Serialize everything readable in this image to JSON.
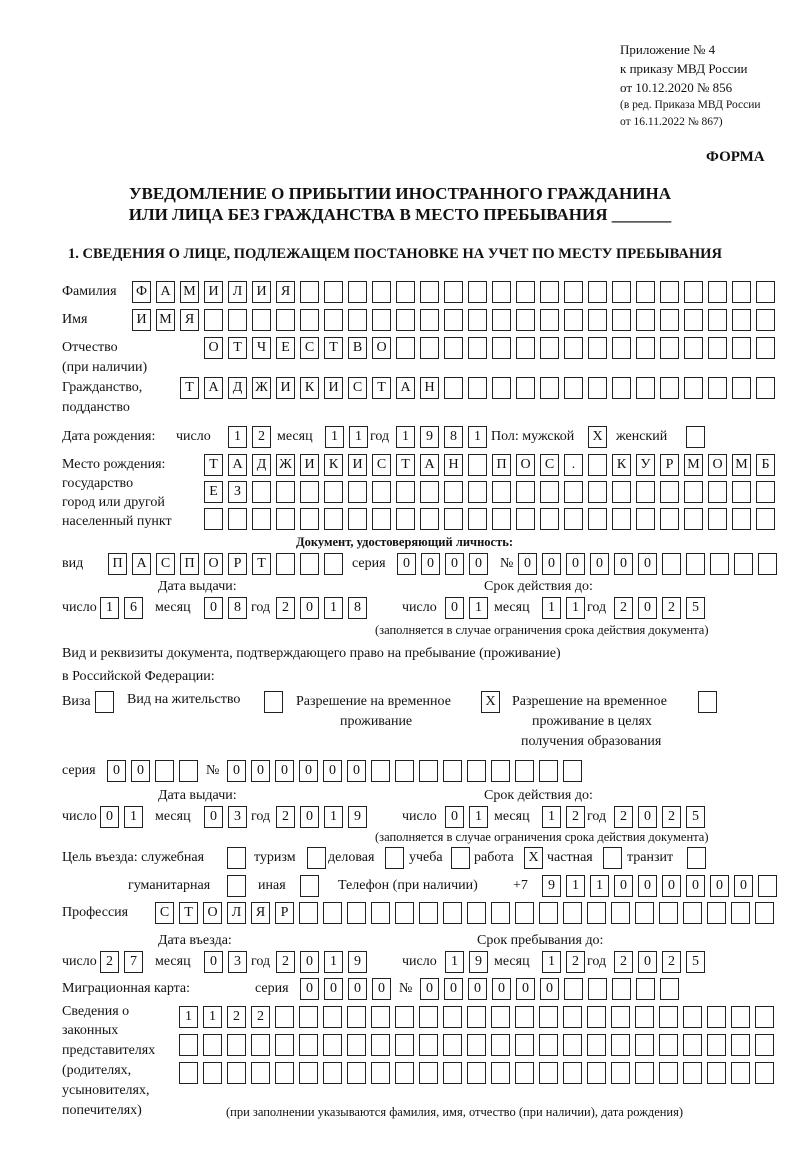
{
  "header": {
    "line1": "Приложение № 4",
    "line2": "к приказу МВД России",
    "line3": "от 10.12.2020 № 856",
    "line4": "(в ред. Приказа МВД России",
    "line5": "от 16.11.2022 № 867)",
    "form_label": "ФОРМА"
  },
  "title": {
    "line1": "УВЕДОМЛЕНИЕ О ПРИБЫТИИ ИНОСТРАННОГО ГРАЖДАНИНА",
    "line2": "ИЛИ ЛИЦА БЕЗ ГРАЖДАНСТВА В МЕСТО ПРЕБЫВАНИЯ _______"
  },
  "section1": {
    "heading": "1. СВЕДЕНИЯ О ЛИЦЕ, ПОДЛЕЖАЩЕМ ПОСТАНОВКЕ НА УЧЕТ ПО МЕСТУ ПРЕБЫВАНИЯ",
    "labels": {
      "surname": "Фамилия",
      "name": "Имя",
      "patronymic1": "Отчество",
      "patronymic2": "(при наличии)",
      "citizenship1": "Гражданство,",
      "citizenship2": "подданство",
      "dob": "Дата рождения:",
      "day": "число",
      "month": "месяц",
      "year": "год",
      "sex": "Пол: мужской",
      "female": "женский",
      "pob1": "Место рождения:",
      "pob2": "государство",
      "pob3": "город или другой",
      "pob4": "населенный пункт",
      "id_doc": "Документ, удостоверяющий личность:",
      "kind": "вид",
      "series": "серия",
      "number": "№",
      "issue_date": "Дата выдачи:",
      "valid_until": "Срок действия до:",
      "validity_note": "(заполняется в случае ограничения срока действия документа)",
      "right_doc1": "Вид и реквизиты документа, подтверждающего право на пребывание (проживание)",
      "right_doc2": "в Российской Федерации:",
      "visa": "Виза",
      "residence_permit": "Вид на жительство",
      "trp1": "Разрешение на временное",
      "trp2": "проживание",
      "trp_edu1": "Разрешение на временное",
      "trp_edu2": "проживание в целях",
      "trp_edu3": "получения образования",
      "purpose": "Цель въезда: служебная",
      "tourism": "туризм",
      "business": "деловая",
      "study": "учеба",
      "work": "работа",
      "private": "частная",
      "transit": "транзит",
      "humanitarian": "гуманитарная",
      "other": "иная",
      "phone": "Телефон (при наличии)",
      "phone_prefix": "+7",
      "profession": "Профессия",
      "entry_date": "Дата въезда:",
      "stay_until": "Срок пребывания до:",
      "migration_card": "Миграционная карта:",
      "reps1": "Сведения о",
      "reps2": "законных",
      "reps3": "представителях",
      "reps4": "(родителях,",
      "reps5": "усыновителях,",
      "reps6": "попечителях)",
      "reps_note": "(при заполнении указываются фамилия, имя, отчество (при наличии), дата рождения)"
    },
    "values": {
      "surname": "ФАМИЛИЯ",
      "name": "ИМЯ",
      "patronymic": "ОТЧЕСТВО",
      "citizenship": "ТАДЖИКИСТАН",
      "dob_day": "12",
      "dob_month": "11",
      "dob_year": "1981",
      "sex_male": "X",
      "sex_female": "",
      "pob_line1": "ТАДЖИКИСТАН ПОС. КУРМОМБ",
      "pob_line2": "ЕЗ",
      "pob_line3": "",
      "id_kind": "ПАСПОРТ",
      "id_series": "0000",
      "id_number": "000000",
      "id_issue_day": "16",
      "id_issue_month": "08",
      "id_issue_year": "2018",
      "id_valid_day": "01",
      "id_valid_month": "11",
      "id_valid_year": "2025",
      "visa": "",
      "residence_permit": "",
      "trp": "X",
      "trp_edu": "",
      "rd_series": "00",
      "rd_number": "000000",
      "rd_issue_day": "01",
      "rd_issue_month": "03",
      "rd_issue_year": "2019",
      "rd_valid_day": "01",
      "rd_valid_month": "12",
      "rd_valid_year": "2025",
      "purpose_official": "",
      "purpose_tourism": "",
      "purpose_business": "",
      "purpose_study": "",
      "purpose_work": "X",
      "purpose_private": "",
      "purpose_transit": "",
      "purpose_humanitarian": "",
      "purpose_other": "",
      "phone": "911000000",
      "profession": "СТОЛЯР",
      "entry_day": "27",
      "entry_month": "03",
      "entry_year": "2019",
      "stay_day": "19",
      "stay_month": "12",
      "stay_year": "2025",
      "mc_series": "0000",
      "mc_number": "000000",
      "reps_line1": "1122",
      "reps_line2": "",
      "reps_line3": ""
    }
  }
}
